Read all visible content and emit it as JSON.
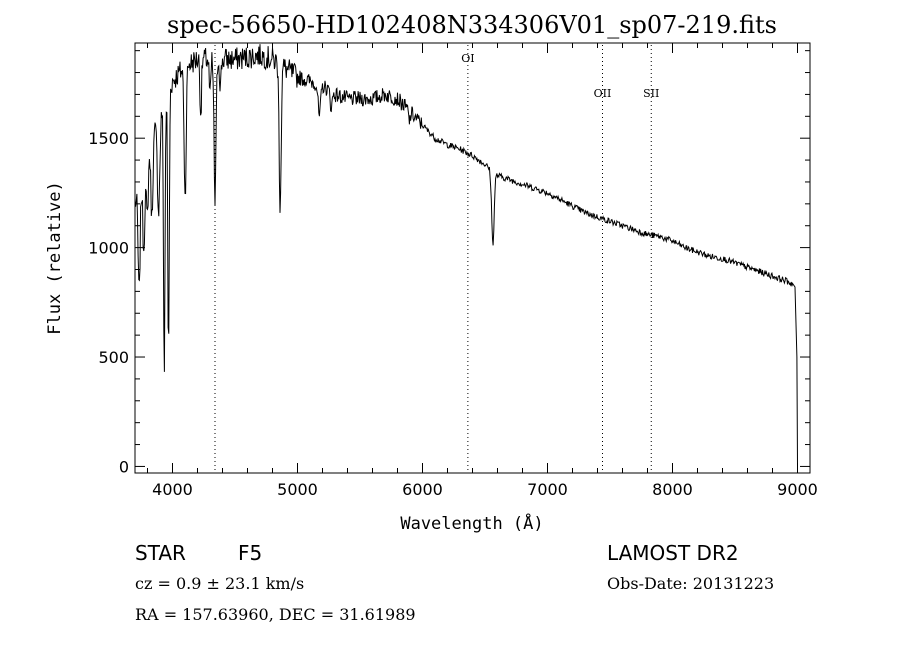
{
  "chart_data": {
    "type": "line",
    "title": "spec-56650-HD102408N334306V01_sp07-219.fits",
    "xlabel": "Wavelength (Å)",
    "ylabel": "Flux (relative)",
    "xlim": [
      3700,
      9100
    ],
    "ylim": [
      -30,
      1935
    ],
    "x_ticks": [
      4000,
      5000,
      6000,
      7000,
      8000,
      9000
    ],
    "y_ticks": [
      0,
      500,
      1000,
      1500
    ],
    "lines": [
      {
        "label": "OI",
        "x": 6363
      },
      {
        "label": "OII",
        "x": 7440
      },
      {
        "label": "SII",
        "x": 7830
      },
      {
        "label": "",
        "x": 4340
      }
    ],
    "continuum": [
      [
        3700,
        1200
      ],
      [
        3750,
        1300
      ],
      [
        3800,
        1420
      ],
      [
        3850,
        1520
      ],
      [
        3900,
        1620
      ],
      [
        3950,
        1690
      ],
      [
        4000,
        1760
      ],
      [
        4100,
        1830
      ],
      [
        4200,
        1860
      ],
      [
        4300,
        1860
      ],
      [
        4400,
        1860
      ],
      [
        4500,
        1860
      ],
      [
        4600,
        1870
      ],
      [
        4700,
        1880
      ],
      [
        4800,
        1860
      ],
      [
        4900,
        1820
      ],
      [
        5000,
        1780
      ],
      [
        5100,
        1760
      ],
      [
        5200,
        1740
      ],
      [
        5300,
        1700
      ],
      [
        5400,
        1680
      ],
      [
        5500,
        1680
      ],
      [
        5600,
        1680
      ],
      [
        5700,
        1700
      ],
      [
        5800,
        1680
      ],
      [
        5900,
        1620
      ],
      [
        6000,
        1560
      ],
      [
        6100,
        1500
      ],
      [
        6200,
        1470
      ],
      [
        6300,
        1450
      ],
      [
        6400,
        1420
      ],
      [
        6500,
        1380
      ],
      [
        6600,
        1330
      ],
      [
        6700,
        1310
      ],
      [
        6800,
        1290
      ],
      [
        6900,
        1270
      ],
      [
        7000,
        1250
      ],
      [
        7100,
        1220
      ],
      [
        7200,
        1190
      ],
      [
        7300,
        1160
      ],
      [
        7400,
        1140
      ],
      [
        7500,
        1120
      ],
      [
        7600,
        1100
      ],
      [
        7700,
        1080
      ],
      [
        7800,
        1060
      ],
      [
        7900,
        1050
      ],
      [
        8000,
        1030
      ],
      [
        8100,
        1000
      ],
      [
        8200,
        980
      ],
      [
        8300,
        960
      ],
      [
        8400,
        950
      ],
      [
        8500,
        930
      ],
      [
        8600,
        910
      ],
      [
        8700,
        890
      ],
      [
        8800,
        870
      ],
      [
        8900,
        850
      ],
      [
        8960,
        835
      ]
    ],
    "absorption": [
      [
        3733,
        480,
        8
      ],
      [
        3770,
        350,
        8
      ],
      [
        3798,
        280,
        8
      ],
      [
        3835,
        350,
        8
      ],
      [
        3889,
        420,
        10
      ],
      [
        3934,
        1250,
        6
      ],
      [
        3968,
        1200,
        6
      ],
      [
        4101,
        600,
        8
      ],
      [
        4226,
        250,
        6
      ],
      [
        4300,
        180,
        6
      ],
      [
        4340,
        650,
        8
      ],
      [
        4383,
        120,
        6
      ],
      [
        4861,
        640,
        8
      ],
      [
        5175,
        150,
        10
      ],
      [
        5270,
        70,
        8
      ],
      [
        5895,
        50,
        6
      ],
      [
        6563,
        330,
        10
      ]
    ],
    "tail": [
      [
        8980,
        820
      ],
      [
        8995,
        500
      ],
      [
        9000,
        0
      ]
    ]
  },
  "footer": {
    "class_label": "STAR",
    "subclass": "F5",
    "cz": "cz = 0.9 ± 23.1 km/s",
    "radec": "RA = 157.63960, DEC =  31.61989",
    "survey": "LAMOST DR2",
    "obs_date": "Obs-Date: 20131223"
  }
}
